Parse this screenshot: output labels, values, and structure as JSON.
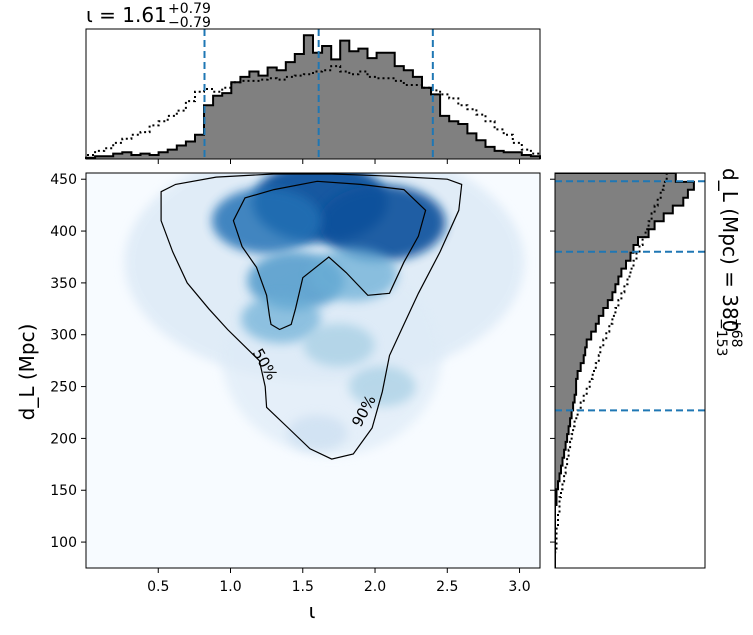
{
  "chart_data": [
    {
      "type": "histogram",
      "panel": "top-marginal",
      "title": "ι = 1.61",
      "title_superscript": "+0.79",
      "title_subscript": "−0.79",
      "xlim": [
        0.0,
        3.1416
      ],
      "bins": [
        0.0,
        0.0628,
        0.1257,
        0.1885,
        0.2513,
        0.3142,
        0.377,
        0.4398,
        0.5027,
        0.5655,
        0.6283,
        0.6912,
        0.754,
        0.8168,
        0.8796,
        0.9425,
        1.0053,
        1.0681,
        1.131,
        1.1938,
        1.2566,
        1.3195,
        1.3823,
        1.4451,
        1.508,
        1.5708,
        1.6336,
        1.6965,
        1.7593,
        1.8221,
        1.885,
        1.9478,
        2.0106,
        2.0735,
        2.1363,
        2.1991,
        2.2619,
        2.3248,
        2.3876,
        2.4504,
        2.5133,
        2.5761,
        2.6389,
        2.7018,
        2.7646,
        2.8274,
        2.8903,
        2.9531,
        3.0159,
        3.0788,
        3.1416
      ],
      "posterior": [
        0.01,
        0.02,
        0.02,
        0.04,
        0.05,
        0.03,
        0.04,
        0.03,
        0.05,
        0.07,
        0.1,
        0.13,
        0.18,
        0.4,
        0.47,
        0.49,
        0.57,
        0.61,
        0.65,
        0.62,
        0.68,
        0.66,
        0.72,
        0.78,
        0.92,
        0.79,
        0.84,
        0.74,
        0.88,
        0.8,
        0.82,
        0.75,
        0.79,
        0.79,
        0.69,
        0.66,
        0.61,
        0.53,
        0.48,
        0.32,
        0.28,
        0.26,
        0.19,
        0.14,
        0.09,
        0.06,
        0.05,
        0.05,
        0.03,
        0.02
      ],
      "prior": [
        0.03,
        0.06,
        0.08,
        0.12,
        0.15,
        0.18,
        0.2,
        0.25,
        0.28,
        0.32,
        0.36,
        0.43,
        0.5,
        0.52,
        0.5,
        0.53,
        0.57,
        0.58,
        0.58,
        0.59,
        0.6,
        0.59,
        0.61,
        0.62,
        0.63,
        0.65,
        0.66,
        0.69,
        0.65,
        0.63,
        0.65,
        0.61,
        0.6,
        0.6,
        0.58,
        0.55,
        0.55,
        0.53,
        0.51,
        0.48,
        0.45,
        0.4,
        0.37,
        0.33,
        0.28,
        0.22,
        0.18,
        0.12,
        0.07,
        0.04
      ],
      "quantile_lines": [
        0.82,
        1.61,
        2.4
      ]
    },
    {
      "type": "heatmap",
      "panel": "joint",
      "xlabel": "ι",
      "ylabel": "d_L (Mpc)",
      "xlim": [
        0.0,
        3.1416
      ],
      "ylim": [
        75,
        456
      ],
      "xticks": [
        0.5,
        1.0,
        1.5,
        2.0,
        2.5,
        3.0
      ],
      "xtick_labels": [
        "0.5",
        "1.0",
        "1.5",
        "2.0",
        "2.5",
        "3.0"
      ],
      "yticks": [
        100,
        150,
        200,
        250,
        300,
        350,
        400,
        450
      ],
      "ytick_labels": [
        "100",
        "150",
        "200",
        "250",
        "300",
        "350",
        "400",
        "450"
      ],
      "colormap": "Blues",
      "density_peaks": [
        {
          "x": 1.62,
          "y": 428,
          "weight": 1.0
        },
        {
          "x": 2.05,
          "y": 408,
          "weight": 0.9
        },
        {
          "x": 1.25,
          "y": 410,
          "weight": 0.7
        },
        {
          "x": 1.45,
          "y": 352,
          "weight": 0.55
        },
        {
          "x": 1.85,
          "y": 358,
          "weight": 0.45
        },
        {
          "x": 1.35,
          "y": 315,
          "weight": 0.35
        },
        {
          "x": 1.75,
          "y": 290,
          "weight": 0.25
        },
        {
          "x": 2.05,
          "y": 250,
          "weight": 0.2
        },
        {
          "x": 1.6,
          "y": 205,
          "weight": 0.12
        }
      ],
      "contour_labels": [
        "50%",
        "90%"
      ],
      "contour_50": [
        [
          1.02,
          410
        ],
        [
          1.1,
          432
        ],
        [
          1.3,
          440
        ],
        [
          1.6,
          448
        ],
        [
          1.9,
          445
        ],
        [
          2.2,
          440
        ],
        [
          2.35,
          420
        ],
        [
          2.3,
          395
        ],
        [
          2.2,
          370
        ],
        [
          2.1,
          340
        ],
        [
          1.95,
          338
        ],
        [
          1.8,
          360
        ],
        [
          1.68,
          375
        ],
        [
          1.5,
          355
        ],
        [
          1.45,
          325
        ],
        [
          1.42,
          310
        ],
        [
          1.34,
          305
        ],
        [
          1.28,
          310
        ],
        [
          1.27,
          318
        ],
        [
          1.25,
          338
        ],
        [
          1.18,
          365
        ],
        [
          1.08,
          385
        ],
        [
          1.02,
          410
        ]
      ],
      "contour_90": [
        [
          0.52,
          438
        ],
        [
          0.62,
          445
        ],
        [
          0.9,
          452
        ],
        [
          1.3,
          455
        ],
        [
          1.7,
          455
        ],
        [
          2.1,
          453
        ],
        [
          2.5,
          450
        ],
        [
          2.6,
          445
        ],
        [
          2.58,
          420
        ],
        [
          2.45,
          380
        ],
        [
          2.3,
          340
        ],
        [
          2.2,
          310
        ],
        [
          2.1,
          280
        ],
        [
          2.05,
          245
        ],
        [
          1.98,
          210
        ],
        [
          1.85,
          185
        ],
        [
          1.7,
          180
        ],
        [
          1.55,
          190
        ],
        [
          1.4,
          210
        ],
        [
          1.25,
          230
        ],
        [
          1.24,
          250
        ],
        [
          1.2,
          275
        ],
        [
          0.98,
          305
        ],
        [
          0.85,
          325
        ],
        [
          0.7,
          350
        ],
        [
          0.6,
          380
        ],
        [
          0.52,
          410
        ],
        [
          0.52,
          438
        ]
      ]
    },
    {
      "type": "histogram",
      "panel": "right-marginal",
      "title": "d_L (Mpc) = 380",
      "title_superscript": "+68",
      "title_subscript": "−153",
      "ylim": [
        75,
        456
      ],
      "bin_edges_y": [
        75,
        82.6,
        90.2,
        97.8,
        105.4,
        113,
        120.6,
        128.2,
        135.8,
        143.4,
        151,
        158.6,
        166.2,
        173.8,
        181.4,
        189,
        196.6,
        204.2,
        211.8,
        219.4,
        227,
        234.6,
        242.2,
        249.8,
        257.4,
        265,
        272.6,
        280.2,
        287.8,
        295.4,
        303,
        310.6,
        318.2,
        325.8,
        333.4,
        341,
        348.6,
        356.2,
        363.8,
        371.4,
        379,
        386.6,
        394.2,
        401.8,
        409.4,
        417,
        424.6,
        432.2,
        439.8,
        447.4,
        456
      ],
      "posterior": [
        0.0,
        0.0,
        0.0,
        0.0,
        0.0,
        0.0,
        0.0,
        0.0,
        0.01,
        0.01,
        0.02,
        0.03,
        0.04,
        0.05,
        0.06,
        0.07,
        0.08,
        0.09,
        0.1,
        0.11,
        0.12,
        0.13,
        0.14,
        0.14,
        0.15,
        0.17,
        0.19,
        0.2,
        0.21,
        0.24,
        0.27,
        0.29,
        0.32,
        0.35,
        0.38,
        0.4,
        0.42,
        0.44,
        0.47,
        0.5,
        0.52,
        0.55,
        0.62,
        0.66,
        0.72,
        0.78,
        0.85,
        0.88,
        0.92,
        0.8
      ],
      "prior": [
        0.0,
        0.0,
        0.01,
        0.01,
        0.01,
        0.02,
        0.02,
        0.03,
        0.03,
        0.04,
        0.05,
        0.06,
        0.07,
        0.08,
        0.09,
        0.1,
        0.11,
        0.12,
        0.13,
        0.15,
        0.17,
        0.19,
        0.21,
        0.23,
        0.25,
        0.27,
        0.29,
        0.3,
        0.32,
        0.34,
        0.36,
        0.38,
        0.4,
        0.42,
        0.44,
        0.46,
        0.48,
        0.5,
        0.52,
        0.54,
        0.56,
        0.58,
        0.6,
        0.62,
        0.64,
        0.66,
        0.68,
        0.7,
        0.72,
        0.74
      ],
      "quantile_lines": [
        227,
        380,
        448
      ]
    }
  ]
}
